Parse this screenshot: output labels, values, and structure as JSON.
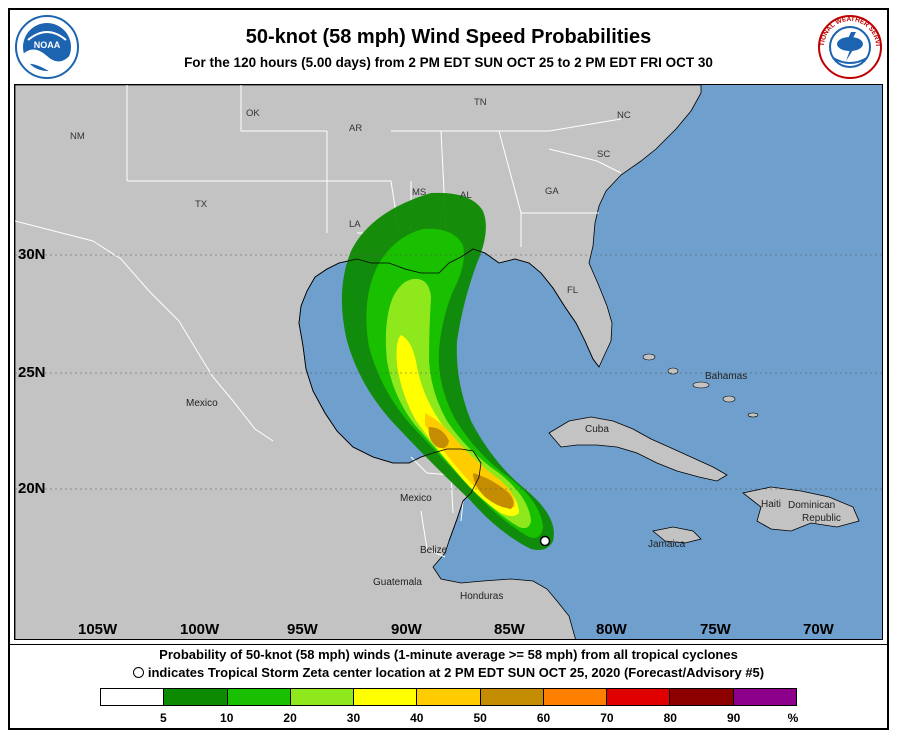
{
  "header": {
    "title": "50-knot (58 mph) Wind Speed Probabilities",
    "subtitle": "For the 120 hours (5.00 days) from 2 PM EDT SUN OCT 25 to 2 PM EDT FRI OCT 30"
  },
  "logos": {
    "left": {
      "text": "NOAA",
      "color": "#1d64b0"
    },
    "right": {
      "text": "NATIONAL WEATHER SERVICE",
      "color": "#1d64b0"
    }
  },
  "map": {
    "colors": {
      "water": "#6f9fcc",
      "land": "#c3c3c3",
      "border": "#ffffff",
      "coast": "#000000"
    },
    "lat_labels": [
      "30N",
      "25N",
      "20N"
    ],
    "lon_labels": [
      "105W",
      "100W",
      "95W",
      "90W",
      "85W",
      "80W",
      "75W",
      "70W"
    ],
    "state_labels": [
      "NM",
      "OK",
      "AR",
      "TN",
      "NC",
      "SC",
      "GA",
      "AL",
      "MS",
      "LA",
      "TX",
      "FL"
    ],
    "country_labels": [
      "Mexico",
      "Mexico",
      "Cuba",
      "Bahamas",
      "Haiti",
      "Dominican",
      "Republic",
      "Jamaica",
      "Belize",
      "Guatemala",
      "Honduras"
    ],
    "storm_marker": {
      "name": "Tropical Storm Zeta",
      "lat": 18.4,
      "lon": -84.6
    }
  },
  "caption": {
    "line1": "Probability of 50-knot (58 mph) winds (1-minute average >= 58 mph) from all tropical cyclones",
    "line2": "indicates Tropical Storm Zeta center location at 2 PM EDT SUN OCT 25, 2020 (Forecast/Advisory #5)"
  },
  "legend": {
    "colors": [
      "#ffffff",
      "#0c8a00",
      "#18c000",
      "#8ee81c",
      "#ffff00",
      "#ffcc00",
      "#c48c00",
      "#ff8000",
      "#e00000",
      "#8c0000",
      "#8c008c"
    ],
    "ticks": [
      "5",
      "10",
      "20",
      "30",
      "40",
      "50",
      "60",
      "70",
      "80",
      "90"
    ],
    "unit": "%"
  }
}
